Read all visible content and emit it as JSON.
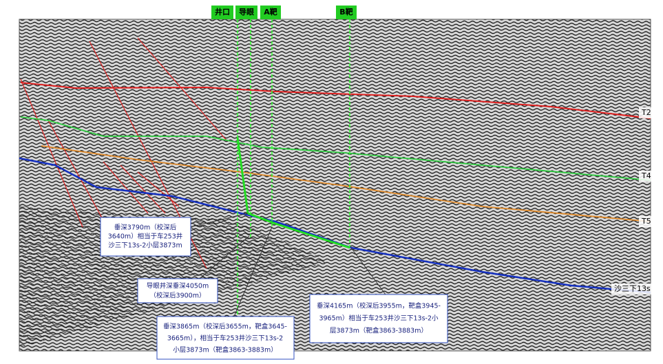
{
  "well_labels": [
    "井口",
    "导眼",
    "A靶",
    "B靶"
  ],
  "horizon_labels": [
    "T2",
    "T4",
    "T5",
    "沙三下13s"
  ],
  "callouts": [
    {
      "lines": [
        "垂深3790m（校深后",
        "3640m）相当于车253井",
        "沙三下13s-2小层3873m"
      ]
    },
    {
      "lines": [
        "导眼井深垂深4050m",
        "（校深后3900m）"
      ]
    },
    {
      "lines": [
        "垂深3865m（校深后3655m，靶盒3645-",
        "3665m），相当于车253井沙三下13s-2",
        "小层3873m（靶盒3863-3883m）"
      ]
    },
    {
      "lines": [
        "垂深4165m（校深后3955m，靶盒3945-",
        "3965m）相当于车253井沙三下13s-2小",
        "层3873m（靶盒3863-3883m）"
      ]
    }
  ]
}
